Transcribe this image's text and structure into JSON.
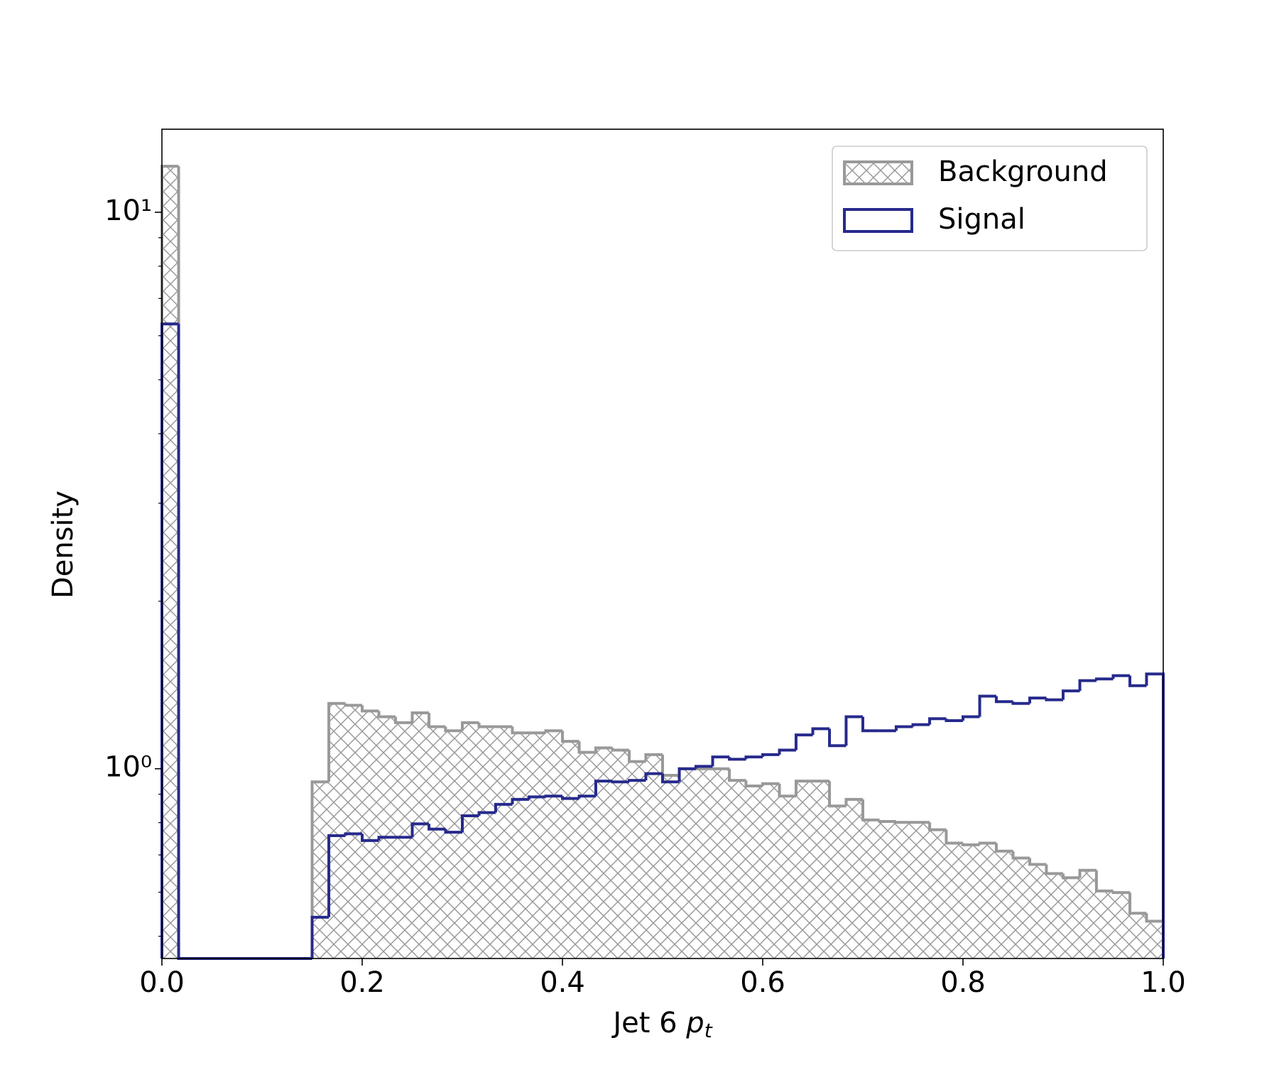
{
  "chart_data": {
    "type": "histogram",
    "xlabel": {
      "text": "Jet 6",
      "symbol": "p",
      "subscript": "t"
    },
    "ylabel": "Density",
    "log_y": true,
    "legend": "upper right",
    "bins": [
      0,
      0.0167,
      0.0333,
      0.05,
      0.0667,
      0.0833,
      0.1,
      0.1167,
      0.1333,
      0.15,
      0.1667,
      0.1833,
      0.2,
      0.2167,
      0.2333,
      0.25,
      0.2667,
      0.2833,
      0.3,
      0.3167,
      0.3333,
      0.35,
      0.3667,
      0.3833,
      0.4,
      0.4167,
      0.4333,
      0.45,
      0.4667,
      0.4833,
      0.5,
      0.5167,
      0.5333,
      0.55,
      0.5667,
      0.5833,
      0.6,
      0.6167,
      0.6333,
      0.65,
      0.6667,
      0.6833,
      0.7,
      0.7167,
      0.7333,
      0.75,
      0.7667,
      0.7833,
      0.8,
      0.8167,
      0.8333,
      0.85,
      0.8667,
      0.8833,
      0.9,
      0.9167,
      0.9333,
      0.95,
      0.9667,
      0.9833,
      1.0
    ],
    "series": [
      {
        "name": "Background",
        "color": "#999999",
        "hatch": true,
        "values": [
          12.1,
          0,
          0,
          0,
          0,
          0,
          0,
          0,
          0,
          0.947,
          1.31,
          1.3,
          1.27,
          1.24,
          1.21,
          1.26,
          1.19,
          1.17,
          1.21,
          1.19,
          1.19,
          1.16,
          1.16,
          1.17,
          1.12,
          1.07,
          1.09,
          1.08,
          1.03,
          1.06,
          0.973,
          1.0,
          1.0,
          1.0,
          0.953,
          0.931,
          0.94,
          0.893,
          0.95,
          0.95,
          0.857,
          0.881,
          0.809,
          0.804,
          0.801,
          0.801,
          0.777,
          0.735,
          0.73,
          0.735,
          0.711,
          0.691,
          0.673,
          0.648,
          0.637,
          0.657,
          0.603,
          0.599,
          0.55,
          0.532
        ]
      },
      {
        "name": "Signal",
        "color": "#262a8c",
        "hatch": false,
        "values": [
          6.3,
          0,
          0,
          0,
          0,
          0,
          0,
          0,
          0,
          0.541,
          0.758,
          0.764,
          0.743,
          0.753,
          0.753,
          0.796,
          0.779,
          0.769,
          0.823,
          0.834,
          0.863,
          0.881,
          0.89,
          0.893,
          0.884,
          0.893,
          0.95,
          0.947,
          0.953,
          0.98,
          0.947,
          1.0,
          1.01,
          1.05,
          1.04,
          1.05,
          1.06,
          1.08,
          1.15,
          1.18,
          1.1,
          1.24,
          1.17,
          1.17,
          1.19,
          1.2,
          1.23,
          1.22,
          1.24,
          1.35,
          1.32,
          1.31,
          1.34,
          1.33,
          1.38,
          1.44,
          1.45,
          1.47,
          1.41,
          1.48
        ]
      }
    ],
    "xlim": [
      0,
      1
    ],
    "xticks": [
      {
        "value": 0,
        "label": "0.0"
      },
      0.2,
      0.4,
      0.6,
      0.8,
      {
        "value": 1,
        "label": "1.0"
      }
    ],
    "ylim": [
      0.456,
      14.1
    ],
    "yticks": [
      {
        "value": 1,
        "label": "10⁰"
      },
      {
        "value": 10,
        "label": "10¹"
      }
    ],
    "yminorticks": [
      0.5,
      0.6,
      0.7,
      0.8,
      0.9,
      2,
      3,
      4,
      5,
      6,
      7,
      8,
      9
    ]
  }
}
